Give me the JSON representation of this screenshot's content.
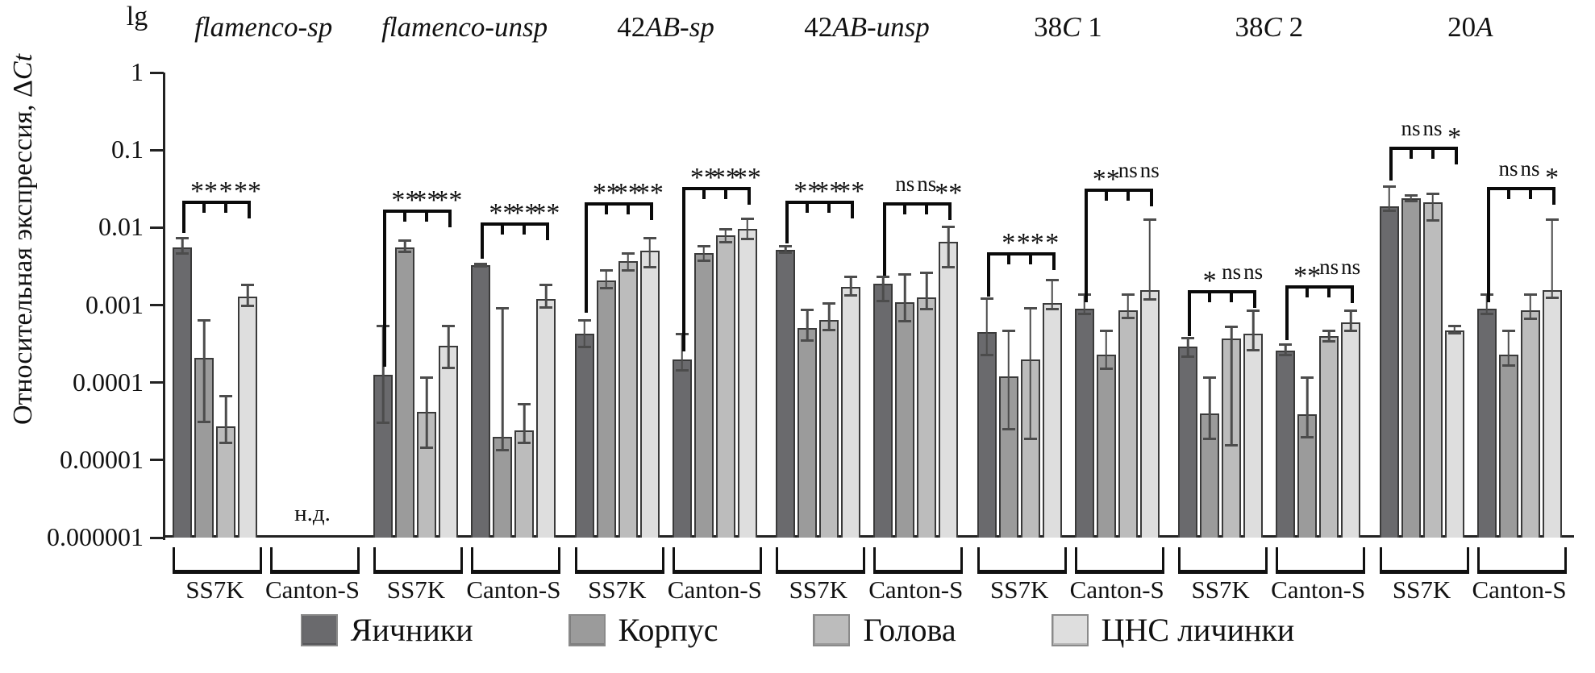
{
  "chart_data": {
    "type": "bar",
    "scale": "log10",
    "grid": false,
    "ylabel_unit": "lg",
    "ylabel_parts": [
      {
        "text": "Относительная экспрессия, Δ",
        "italic": false
      },
      {
        "text": "Ct",
        "italic": true
      }
    ],
    "ylim": [
      1e-06,
      1
    ],
    "yticks": [
      "1",
      "0.1",
      "0.01",
      "0.001",
      "0.0001",
      "0.00001",
      "0.000001"
    ],
    "ytick_values": [
      1,
      0.1,
      0.01,
      0.001,
      0.0001,
      1e-05,
      1e-06
    ],
    "no_data_text": "н.д.",
    "legend": [
      {
        "label": "Яичники",
        "color": "#6a6a6d"
      },
      {
        "label": "Корпус",
        "color": "#9b9b9b"
      },
      {
        "label": "Голова",
        "color": "#bcbcbc"
      },
      {
        "label": "ЦНС личинки",
        "color": "#dedede"
      }
    ],
    "groups": [
      {
        "title_parts": [
          {
            "text": "flamenco-sp",
            "italic": true
          }
        ],
        "clusters": [
          {
            "strain": "SS7K",
            "sig": [
              "**",
              "*",
              "**"
            ],
            "bracket_level": 0.022,
            "bracket_drop_to": 0.0085,
            "bars": [
              {
                "v": 0.0055,
                "lo": 0.0045,
                "hi": 0.0075
              },
              {
                "v": 0.00021,
                "lo": 3e-05,
                "hi": 0.00065
              },
              {
                "v": 2.7e-05,
                "lo": 1.6e-05,
                "hi": 7e-05
              },
              {
                "v": 0.0013,
                "lo": 0.00095,
                "hi": 0.0019
              }
            ]
          },
          {
            "strain": "Canton-S",
            "no_data": true,
            "bars": []
          }
        ]
      },
      {
        "title_parts": [
          {
            "text": "flamenco-unsp",
            "italic": true
          }
        ],
        "clusters": [
          {
            "strain": "SS7K",
            "sig": [
              "**",
              "**",
              "**"
            ],
            "bracket_level": 0.017,
            "bracket_drop_to": 0.00016,
            "bars": [
              {
                "v": 0.000125,
                "lo": 2.9e-05,
                "hi": 0.00055
              },
              {
                "v": 0.0055,
                "lo": 0.0047,
                "hi": 0.007
              },
              {
                "v": 4.2e-05,
                "lo": 1.4e-05,
                "hi": 0.00012
              },
              {
                "v": 0.0003,
                "lo": 0.00015,
                "hi": 0.00055
              }
            ]
          },
          {
            "strain": "Canton-S",
            "sig": [
              "**",
              "**",
              "**"
            ],
            "bracket_level": 0.0115,
            "bracket_drop_to": 0.004,
            "bars": [
              {
                "v": 0.0033,
                "lo": 0.0031,
                "hi": 0.0035
              },
              {
                "v": 2e-05,
                "lo": 1.3e-05,
                "hi": 0.00095
              },
              {
                "v": 2.4e-05,
                "lo": 1.6e-05,
                "hi": 5.5e-05
              },
              {
                "v": 0.0012,
                "lo": 0.0009,
                "hi": 0.0019
              }
            ]
          }
        ]
      },
      {
        "title_parts": [
          {
            "text": "42",
            "italic": false
          },
          {
            "text": "AB-sp",
            "italic": true
          }
        ],
        "clusters": [
          {
            "strain": "SS7K",
            "sig": [
              "**",
              "**",
              "**"
            ],
            "bracket_level": 0.021,
            "bracket_drop_to": 0.0008,
            "bars": [
              {
                "v": 0.00043,
                "lo": 0.00028,
                "hi": 0.00066
              },
              {
                "v": 0.0021,
                "lo": 0.0016,
                "hi": 0.0029
              },
              {
                "v": 0.0037,
                "lo": 0.0027,
                "hi": 0.0048
              },
              {
                "v": 0.005,
                "lo": 0.003,
                "hi": 0.0075
              }
            ]
          },
          {
            "strain": "Canton-S",
            "sig": [
              "**",
              "**",
              "**"
            ],
            "bracket_level": 0.033,
            "bracket_drop_to": 0.00025,
            "bars": [
              {
                "v": 0.0002,
                "lo": 0.00014,
                "hi": 0.00044
              },
              {
                "v": 0.0047,
                "lo": 0.0036,
                "hi": 0.006
              },
              {
                "v": 0.008,
                "lo": 0.0063,
                "hi": 0.0099
              },
              {
                "v": 0.0097,
                "lo": 0.0068,
                "hi": 0.0135
              }
            ]
          }
        ]
      },
      {
        "title_parts": [
          {
            "text": "42",
            "italic": false
          },
          {
            "text": "AB-unsp",
            "italic": true
          }
        ],
        "clusters": [
          {
            "strain": "SS7K",
            "sig": [
              "**",
              "**",
              "**"
            ],
            "bracket_level": 0.022,
            "bracket_drop_to": 0.0063,
            "bars": [
              {
                "v": 0.0052,
                "lo": 0.0046,
                "hi": 0.006
              },
              {
                "v": 0.0005,
                "lo": 0.00034,
                "hi": 0.0009
              },
              {
                "v": 0.00065,
                "lo": 0.00046,
                "hi": 0.0011
              },
              {
                "v": 0.0017,
                "lo": 0.0013,
                "hi": 0.0024
              }
            ]
          },
          {
            "strain": "Canton-S",
            "sig": [
              "ns",
              "ns",
              "**"
            ],
            "bracket_level": 0.021,
            "bracket_drop_to": 0.0024,
            "bars": [
              {
                "v": 0.0019,
                "lo": 0.0011,
                "hi": 0.0024
              },
              {
                "v": 0.0011,
                "lo": 0.0006,
                "hi": 0.0026
              },
              {
                "v": 0.00125,
                "lo": 0.00085,
                "hi": 0.0027
              },
              {
                "v": 0.0065,
                "lo": 0.003,
                "hi": 0.0105
              }
            ]
          }
        ]
      },
      {
        "title_parts": [
          {
            "text": "38",
            "italic": false
          },
          {
            "text": "C",
            "italic": true
          },
          {
            "text": " 1",
            "italic": false
          }
        ],
        "clusters": [
          {
            "strain": "SS7K",
            "sig": [
              "*",
              "**",
              "*"
            ],
            "bracket_level": 0.0048,
            "bracket_drop_to": 0.0013,
            "bars": [
              {
                "v": 0.00045,
                "lo": 0.00022,
                "hi": 0.00125
              },
              {
                "v": 0.00012,
                "lo": 2.4e-05,
                "hi": 0.00048
              },
              {
                "v": 0.0002,
                "lo": 1.8e-05,
                "hi": 0.00095
              },
              {
                "v": 0.00105,
                "lo": 0.00085,
                "hi": 0.0022
              }
            ]
          },
          {
            "strain": "Canton-S",
            "sig": [
              "**",
              "ns",
              "ns"
            ],
            "bracket_level": 0.032,
            "bracket_drop_to": 0.0011,
            "bars": [
              {
                "v": 0.0009,
                "lo": 0.00075,
                "hi": 0.0014
              },
              {
                "v": 0.00023,
                "lo": 0.000145,
                "hi": 0.00048
              },
              {
                "v": 0.00085,
                "lo": 0.00066,
                "hi": 0.0014
              },
              {
                "v": 0.00155,
                "lo": 0.00115,
                "hi": 0.013
              }
            ]
          }
        ]
      },
      {
        "title_parts": [
          {
            "text": "38",
            "italic": false
          },
          {
            "text": "C",
            "italic": true
          },
          {
            "text": " 2",
            "italic": false
          }
        ],
        "clusters": [
          {
            "strain": "SS7K",
            "sig": [
              "*",
              "ns",
              "ns"
            ],
            "bracket_level": 0.00155,
            "bracket_drop_to": 0.0004,
            "bars": [
              {
                "v": 0.00029,
                "lo": 0.00021,
                "hi": 0.00039
              },
              {
                "v": 4e-05,
                "lo": 1.8e-05,
                "hi": 0.00012
              },
              {
                "v": 0.00037,
                "lo": 1.5e-05,
                "hi": 0.00054
              },
              {
                "v": 0.00043,
                "lo": 0.00025,
                "hi": 0.00088
              }
            ]
          },
          {
            "strain": "Canton-S",
            "sig": [
              "**",
              "ns",
              "ns"
            ],
            "bracket_level": 0.0018,
            "bracket_drop_to": 0.00035,
            "bars": [
              {
                "v": 0.00026,
                "lo": 0.00022,
                "hi": 0.00032
              },
              {
                "v": 3.9e-05,
                "lo": 1.9e-05,
                "hi": 0.00012
              },
              {
                "v": 0.0004,
                "lo": 0.00033,
                "hi": 0.00048
              },
              {
                "v": 0.0006,
                "lo": 0.00045,
                "hi": 0.00088
              }
            ]
          }
        ]
      },
      {
        "title_parts": [
          {
            "text": "20",
            "italic": false
          },
          {
            "text": "A",
            "italic": true
          }
        ],
        "clusters": [
          {
            "strain": "SS7K",
            "sig": [
              "ns",
              "ns",
              "*"
            ],
            "bracket_level": 0.11,
            "bracket_drop_to": 0.04,
            "bars": [
              {
                "v": 0.019,
                "lo": 0.016,
                "hi": 0.035
              },
              {
                "v": 0.024,
                "lo": 0.021,
                "hi": 0.027
              },
              {
                "v": 0.021,
                "lo": 0.012,
                "hi": 0.028
              },
              {
                "v": 0.00047,
                "lo": 0.00042,
                "hi": 0.00056
              }
            ]
          },
          {
            "strain": "Canton-S",
            "sig": [
              "ns",
              "ns",
              "*"
            ],
            "bracket_level": 0.033,
            "bracket_drop_to": 0.0011,
            "bars": [
              {
                "v": 0.0009,
                "lo": 0.00075,
                "hi": 0.0014
              },
              {
                "v": 0.00023,
                "lo": 0.00016,
                "hi": 0.00048
              },
              {
                "v": 0.00085,
                "lo": 0.00064,
                "hi": 0.0014
              },
              {
                "v": 0.00155,
                "lo": 0.0012,
                "hi": 0.013
              }
            ]
          }
        ]
      }
    ]
  }
}
